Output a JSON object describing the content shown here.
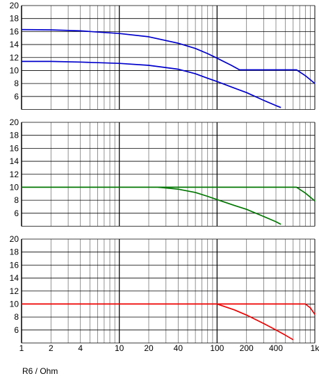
{
  "chart_data": [
    {
      "type": "line",
      "x_scale": "log",
      "xlim": [
        1,
        1000
      ],
      "ylim": [
        4,
        20
      ],
      "y_ticks": [
        6,
        8,
        10,
        12,
        14,
        16,
        18,
        20
      ],
      "grid": true,
      "series": [
        {
          "color": "#0000cc",
          "x": [
            1,
            2,
            4,
            10,
            20,
            40,
            60,
            80,
            100,
            140,
            170,
            200,
            300,
            400,
            600,
            650,
            800,
            1000
          ],
          "y": [
            16.3,
            16.25,
            16.1,
            15.7,
            15.2,
            14.2,
            13.4,
            12.6,
            11.9,
            10.8,
            10.1,
            10.1,
            10.1,
            10.1,
            10.1,
            10.1,
            9.2,
            8.0
          ]
        },
        {
          "color": "#0000cc",
          "x": [
            1,
            2,
            4,
            10,
            20,
            40,
            60,
            80,
            100,
            150,
            200,
            300,
            400,
            450
          ],
          "y": [
            11.4,
            11.4,
            11.3,
            11.1,
            10.8,
            10.2,
            9.5,
            8.8,
            8.3,
            7.3,
            6.6,
            5.4,
            4.6,
            4.3
          ]
        }
      ]
    },
    {
      "type": "line",
      "x_scale": "log",
      "xlim": [
        1,
        1000
      ],
      "ylim": [
        4,
        20
      ],
      "y_ticks": [
        6,
        8,
        10,
        12,
        14,
        16,
        18,
        20
      ],
      "grid": true,
      "series": [
        {
          "color": "#007700",
          "x": [
            1,
            10,
            20,
            25,
            650,
            800,
            1000
          ],
          "y": [
            10.0,
            10.0,
            10.0,
            10.0,
            10.0,
            9.1,
            7.9
          ]
        },
        {
          "color": "#007700",
          "x": [
            25,
            40,
            60,
            80,
            100,
            150,
            200,
            300,
            400,
            450
          ],
          "y": [
            10.0,
            9.7,
            9.2,
            8.6,
            8.1,
            7.2,
            6.6,
            5.5,
            4.7,
            4.3
          ]
        }
      ]
    },
    {
      "type": "line",
      "x_scale": "log",
      "xlim": [
        1,
        1000
      ],
      "ylim": [
        4,
        20
      ],
      "y_ticks": [
        6,
        8,
        10,
        12,
        14,
        16,
        18,
        20
      ],
      "x_ticks": [
        "1",
        "2",
        "4",
        "10",
        "20",
        "40",
        "100",
        "200",
        "400",
        "1k"
      ],
      "x_tick_values": [
        1,
        2,
        4,
        10,
        20,
        40,
        100,
        200,
        400,
        1000
      ],
      "grid": true,
      "xlabel": "R6 / Ohm",
      "series": [
        {
          "color": "#ee0000",
          "x": [
            1,
            10,
            100,
            700,
            800,
            900,
            1000
          ],
          "y": [
            10.0,
            10.0,
            10.0,
            10.0,
            10.0,
            9.4,
            8.4
          ]
        },
        {
          "color": "#ee0000",
          "x": [
            100,
            150,
            200,
            300,
            400,
            500,
            600
          ],
          "y": [
            10.0,
            9.1,
            8.3,
            7.0,
            6.0,
            5.2,
            4.5
          ]
        }
      ]
    }
  ]
}
